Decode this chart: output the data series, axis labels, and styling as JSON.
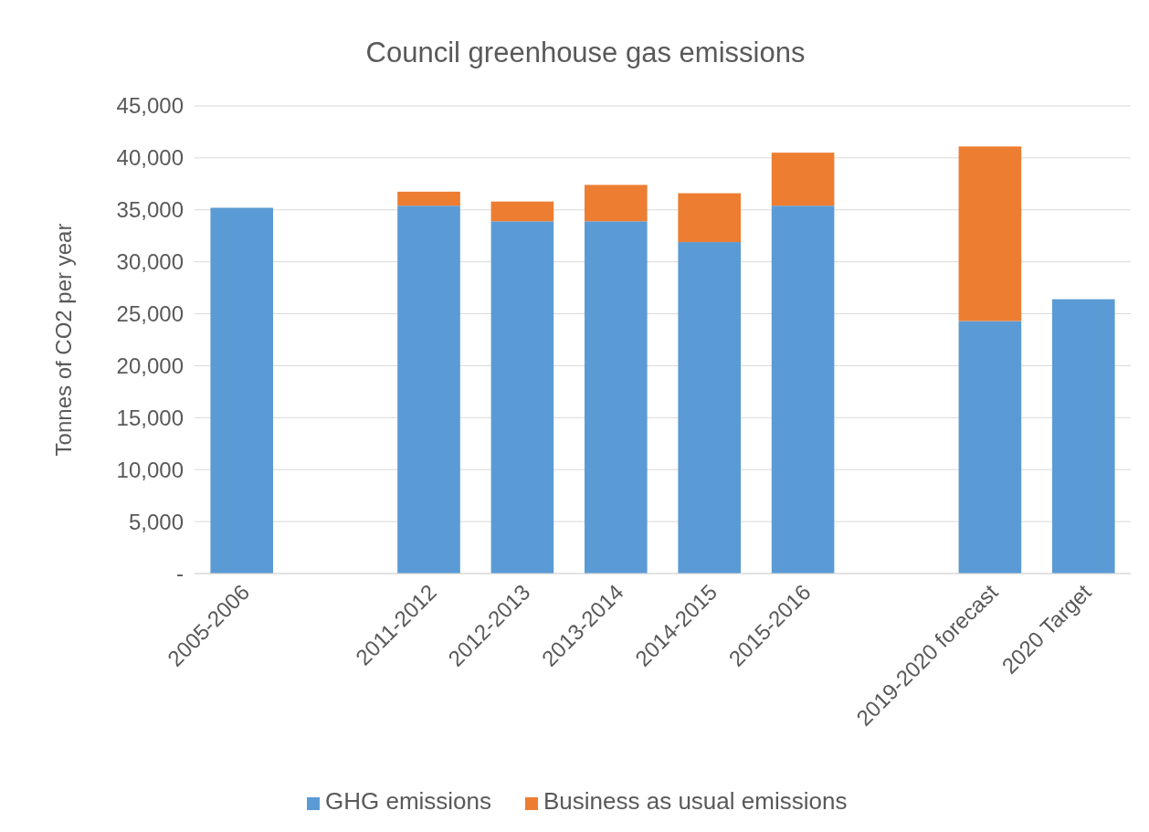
{
  "chart_data": {
    "type": "bar",
    "title": "Council greenhouse gas emissions",
    "ylabel": "Tonnes of CO2 per year",
    "stacked": true,
    "categories": [
      "2005-2006",
      null,
      "2011-2012",
      "2012-2013",
      "2013-2014",
      "2014-2015",
      "2015-2016",
      null,
      "2019-2020 forecast",
      "2020 Target"
    ],
    "series": [
      {
        "name": "GHG emissions",
        "color": "#5b9bd5",
        "values": [
          35200,
          null,
          35400,
          33900,
          33900,
          31900,
          35400,
          null,
          24300,
          26400
        ]
      },
      {
        "name": "Business as usual emissions",
        "color": "#ed7d31",
        "values": [
          null,
          null,
          1350,
          1900,
          3500,
          4700,
          5100,
          null,
          16800,
          null
        ]
      }
    ],
    "ylim": [
      0,
      45000
    ],
    "yticks": [
      {
        "value": 0,
        "label": "-"
      },
      {
        "value": 5000,
        "label": "5,000"
      },
      {
        "value": 10000,
        "label": "10,000"
      },
      {
        "value": 15000,
        "label": "15,000"
      },
      {
        "value": 20000,
        "label": "20,000"
      },
      {
        "value": 25000,
        "label": "25,000"
      },
      {
        "value": 30000,
        "label": "30,000"
      },
      {
        "value": 35000,
        "label": "35,000"
      },
      {
        "value": 40000,
        "label": "40,000"
      },
      {
        "value": 45000,
        "label": "45,000"
      }
    ],
    "grid": "y",
    "legend": "bottom"
  }
}
